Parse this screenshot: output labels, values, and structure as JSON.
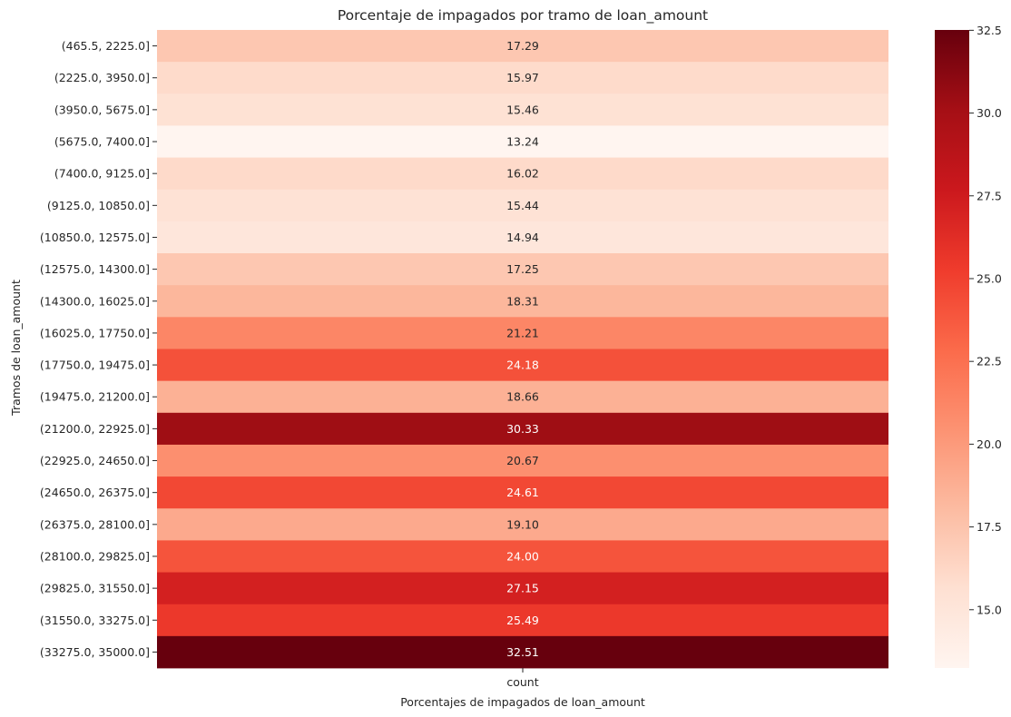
{
  "chart_data": {
    "type": "heatmap",
    "title": "Porcentaje de impagados por tramo de loan_amount",
    "xlabel": "Porcentajes de impagados de loan_amount",
    "ylabel": "Tramos de loan_amount",
    "columns": [
      "count"
    ],
    "rows": [
      "(465.5, 2225.0]",
      "(2225.0, 3950.0]",
      "(3950.0, 5675.0]",
      "(5675.0, 7400.0]",
      "(7400.0, 9125.0]",
      "(9125.0, 10850.0]",
      "(10850.0, 12575.0]",
      "(12575.0, 14300.0]",
      "(14300.0, 16025.0]",
      "(16025.0, 17750.0]",
      "(17750.0, 19475.0]",
      "(19475.0, 21200.0]",
      "(21200.0, 22925.0]",
      "(22925.0, 24650.0]",
      "(24650.0, 26375.0]",
      "(26375.0, 28100.0]",
      "(28100.0, 29825.0]",
      "(29825.0, 31550.0]",
      "(31550.0, 33275.0]",
      "(33275.0, 35000.0]"
    ],
    "values": [
      17.29,
      15.97,
      15.46,
      13.24,
      16.02,
      15.44,
      14.94,
      17.25,
      18.31,
      21.21,
      24.18,
      18.66,
      30.33,
      20.67,
      24.61,
      19.1,
      24.0,
      27.15,
      25.49,
      32.51
    ],
    "value_labels": [
      "17.29",
      "15.97",
      "15.46",
      "13.24",
      "16.02",
      "15.44",
      "14.94",
      "17.25",
      "18.31",
      "21.21",
      "24.18",
      "18.66",
      "30.33",
      "20.67",
      "24.61",
      "19.10",
      "24.00",
      "27.15",
      "25.49",
      "32.51"
    ],
    "colormap": "Reds",
    "color_range": [
      13.24,
      32.51
    ],
    "colorbar_ticks": [
      "15.0",
      "17.5",
      "20.0",
      "22.5",
      "25.0",
      "27.5",
      "30.0",
      "32.5"
    ],
    "colorbar_tick_values": [
      15.0,
      17.5,
      20.0,
      22.5,
      25.0,
      27.5,
      30.0,
      32.5
    ]
  }
}
